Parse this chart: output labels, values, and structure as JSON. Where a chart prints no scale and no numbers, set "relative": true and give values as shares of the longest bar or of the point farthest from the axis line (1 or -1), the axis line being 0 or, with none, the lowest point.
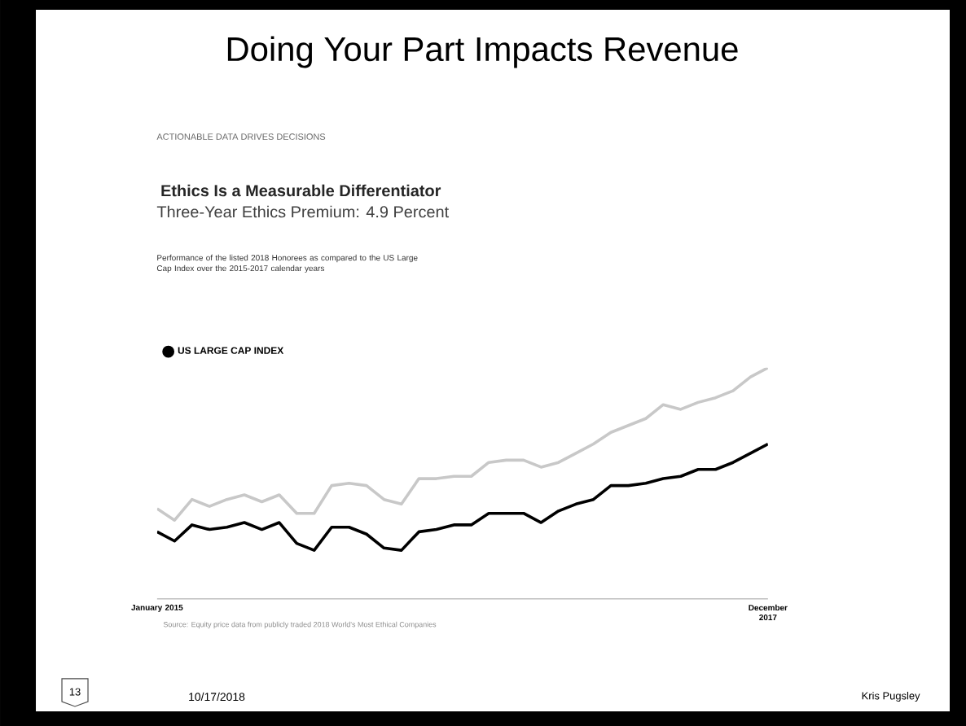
{
  "chart_data": {
    "type": "line",
    "title": "Doing Your Part Impacts Revenue",
    "subtitle": "Ethics Is a Measurable Differentiator",
    "annotations": [
      "ACTIONABLE DATA DRIVES DECISIONS",
      "Three-Year Ethics Premium: 4.9 Percent",
      "Performance of the listed 2018 Honorees as compared to the US Large Cap Index over the 2015-2017 calendar years",
      "Source: Equity price data from publicly traded 2018 World's Most Ethical Companies",
      "13",
      "10/17/2018",
      "Kris Pugsley"
    ],
    "relative": true,
    "legend": "top left",
    "categories": [
      "January 2015",
      null,
      null,
      null,
      null,
      null,
      null,
      null,
      null,
      null,
      null,
      null,
      null,
      null,
      null,
      null,
      null,
      null,
      null,
      null,
      null,
      null,
      null,
      null,
      null,
      null,
      null,
      null,
      null,
      null,
      null,
      null,
      null,
      null,
      null,
      "December 2017"
    ],
    "series": [
      {
        "color": "#c8c8c8",
        "values": [
          0.39,
          0.34,
          0.43,
          0.4,
          0.43,
          0.45,
          0.42,
          0.45,
          0.37,
          0.37,
          0.49,
          0.5,
          0.49,
          0.43,
          0.41,
          0.52,
          0.52,
          0.53,
          0.53,
          0.59,
          0.6,
          0.6,
          0.57,
          0.59,
          0.63,
          0.67,
          0.72,
          0.75,
          0.78,
          0.84,
          0.82,
          0.85,
          0.87,
          0.9,
          0.96,
          1
        ]
      },
      {
        "name": "US LARGE CAP INDEX",
        "color": "#000000",
        "values": [
          0.29,
          0.25,
          0.32,
          0.3,
          0.31,
          0.33,
          0.3,
          0.33,
          0.24,
          0.21,
          0.31,
          0.31,
          0.28,
          0.22,
          0.21,
          0.29,
          0.3,
          0.32,
          0.32,
          0.37,
          0.37,
          0.37,
          0.33,
          0.38,
          0.41,
          0.43,
          0.49,
          0.49,
          0.5,
          0.52,
          0.53,
          0.56,
          0.56,
          0.59,
          0.63,
          0.67
        ]
      }
    ]
  }
}
